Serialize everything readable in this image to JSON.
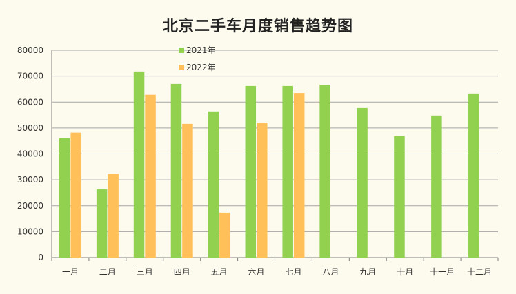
{
  "chart_data": {
    "type": "bar",
    "title": "北京二手车月度销售趋势图",
    "categories": [
      "一月",
      "二月",
      "三月",
      "四月",
      "五月",
      "六月",
      "七月",
      "八月",
      "九月",
      "十月",
      "十一月",
      "十二月"
    ],
    "series": [
      {
        "name": "2021年",
        "color": "#92d050",
        "values": [
          46000,
          26300,
          71800,
          67000,
          56400,
          66200,
          66200,
          66700,
          57700,
          46800,
          54800,
          63300
        ]
      },
      {
        "name": "2022年",
        "color": "#ffc05a",
        "values": [
          48200,
          32400,
          62800,
          51600,
          17300,
          52100,
          63500,
          null,
          null,
          null,
          null,
          null
        ]
      }
    ],
    "ylim": [
      0,
      80000
    ],
    "yticks": [
      0,
      10000,
      20000,
      30000,
      40000,
      50000,
      60000,
      70000,
      80000
    ],
    "grid": true,
    "legend": "top-left"
  }
}
